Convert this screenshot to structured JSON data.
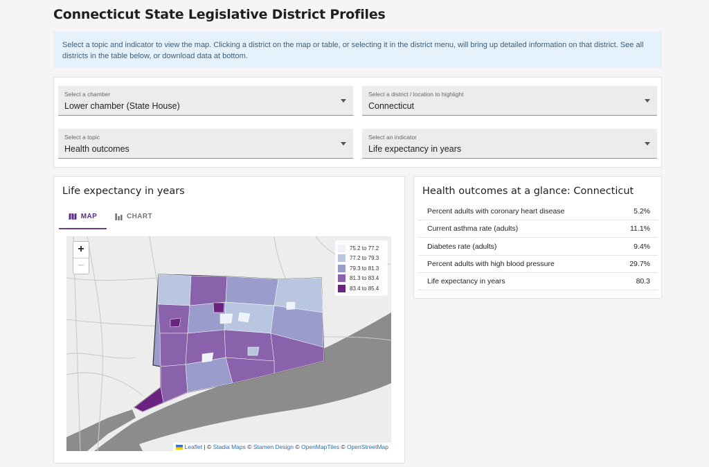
{
  "page": {
    "title": "Connecticut State Legislative District Profiles",
    "intro": "Select a topic and indicator to view the map. Clicking a district on the map or table, or selecting it in the district menu, will bring up detailed information on that district. See all districts in the table below, or download data at bottom."
  },
  "filters": {
    "chamber": {
      "label": "Select a chamber",
      "value": "Lower chamber (State House)"
    },
    "district": {
      "label": "Select a district / location to highlight",
      "value": "Connecticut"
    },
    "topic": {
      "label": "Select a topic",
      "value": "Health outcomes"
    },
    "indicator": {
      "label": "Select an indicator",
      "value": "Life expectancy in years"
    }
  },
  "map_card": {
    "title": "Life expectancy in years",
    "tabs": [
      {
        "label": "MAP",
        "icon": "map-icon",
        "active": true
      },
      {
        "label": "CHART",
        "icon": "bar-chart-icon",
        "active": false
      }
    ],
    "zoom": {
      "in": "+",
      "out": "−"
    },
    "legend": [
      {
        "label": "75.2 to 77.2",
        "color": "#eef3fb"
      },
      {
        "label": "77.2 to 79.3",
        "color": "#b9c6df"
      },
      {
        "label": "79.3 to 81.3",
        "color": "#9a9ccb"
      },
      {
        "label": "81.3 to 83.4",
        "color": "#8a62ac"
      },
      {
        "label": "83.4 to 85.4",
        "color": "#6a237f"
      }
    ],
    "attribution": {
      "leaflet": "Leaflet",
      "sep1": " | © ",
      "stadia": "Stadia Maps",
      "sep2": " © ",
      "stamen": "Stamen Design",
      "sep3": " © ",
      "omt": "OpenMapTiles",
      "sep4": " © ",
      "osm": "OpenStreetMap"
    }
  },
  "glance": {
    "title": "Health outcomes at a glance: Connecticut",
    "rows": [
      {
        "label": "Percent adults with coronary heart disease",
        "value": "5.2%"
      },
      {
        "label": "Current asthma rate (adults)",
        "value": "11.1%"
      },
      {
        "label": "Diabetes rate (adults)",
        "value": "9.4%"
      },
      {
        "label": "Percent adults with high blood pressure",
        "value": "29.7%"
      },
      {
        "label": "Life expectancy in years",
        "value": "80.3"
      }
    ]
  },
  "colors": {
    "accent": "#6a3d90",
    "intro_bg": "#e6f2fb",
    "water": "#8c8c8c",
    "land": "#ededed"
  }
}
